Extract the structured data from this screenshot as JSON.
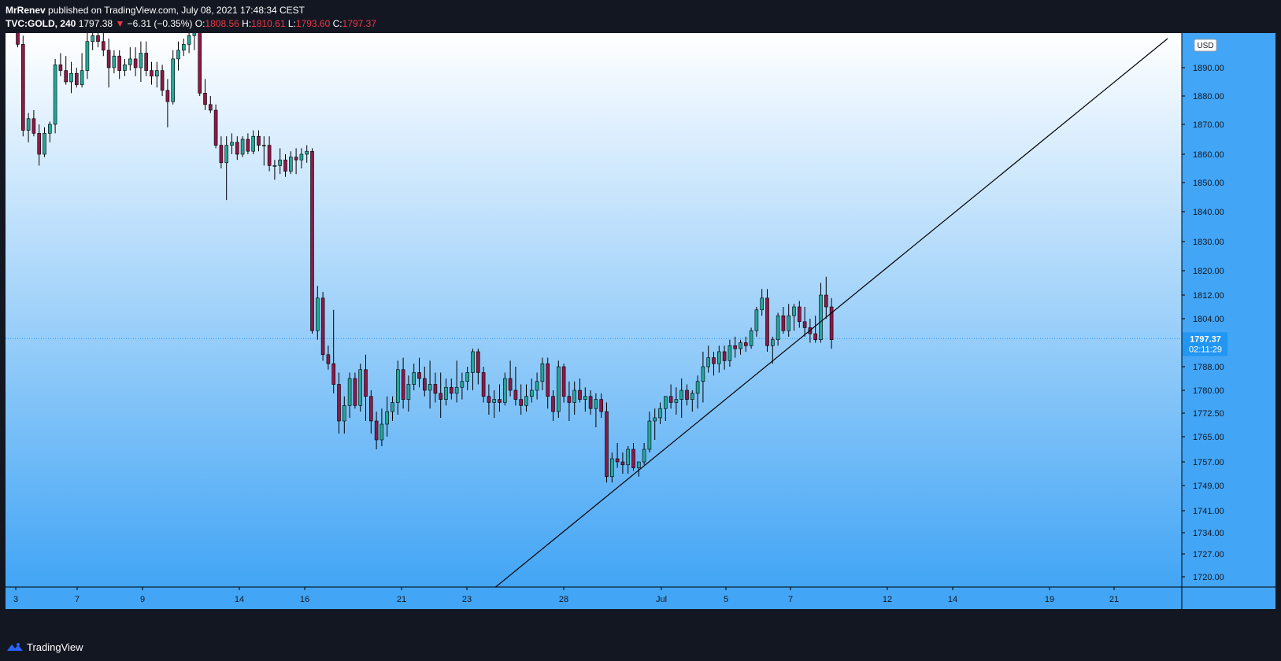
{
  "header": {
    "author": "MrRenev",
    "published": " published on TradingView.com, July 08, 2021 17:48:34 CEST",
    "symbol": "TVC:GOLD, 240",
    "last": "1797.38",
    "change_arrow": "▼",
    "change": "−6.31 (−0.35%)",
    "o_label": "O:",
    "o_value": "1808.56",
    "h_label": "H:",
    "h_value": "1810.61",
    "l_label": "L:",
    "l_value": "1793.60",
    "c_label": "C:",
    "c_value": "1797.37"
  },
  "footer": {
    "brand": "TradingView",
    "logo_icon": "tradingview-logo-icon"
  },
  "colors": {
    "up": "#26a69a",
    "down": "#8b1a47",
    "bg_top": "#ffffff",
    "bg_bottom": "#42a5f5",
    "axis_bg": "#42a5f5",
    "price_tag": "#2196f3",
    "trendline": "#000000"
  },
  "chart_data": {
    "type": "candlestick",
    "currency": "USD",
    "last_price_label": "1797.37",
    "countdown_label": "02:11:29",
    "last_price": 1797.37,
    "y_ticks": [
      "1890.00",
      "1880.00",
      "1870.00",
      "1860.00",
      "1850.00",
      "1840.00",
      "1830.00",
      "1820.00",
      "1812.00",
      "1804.00",
      "1788.00",
      "1780.00",
      "1772.50",
      "1765.00",
      "1757.00",
      "1749.00",
      "1741.00",
      "1734.00",
      "1727.00",
      "1720.00"
    ],
    "x_ticks": [
      "3",
      "7",
      "9",
      "14",
      "16",
      "21",
      "23",
      "28",
      "Jul",
      "5",
      "7",
      "12",
      "14",
      "19",
      "21"
    ],
    "trendline": {
      "from": [
        "Jun 24",
        1715
      ],
      "to": [
        "Jul 22",
        1900
      ]
    },
    "candles": [
      [
        1903,
        1904,
        1897,
        1898
      ],
      [
        1898,
        1901,
        1866,
        1868
      ],
      [
        1868,
        1874,
        1864,
        1872
      ],
      [
        1872,
        1875,
        1866,
        1867
      ],
      [
        1867,
        1870,
        1856,
        1860
      ],
      [
        1860,
        1869,
        1859,
        1867
      ],
      [
        1867,
        1871,
        1864,
        1870
      ],
      [
        1870,
        1893,
        1867,
        1891
      ],
      [
        1891,
        1895,
        1887,
        1889
      ],
      [
        1889,
        1894,
        1884,
        1885
      ],
      [
        1885,
        1892,
        1881,
        1888
      ],
      [
        1888,
        1890,
        1883,
        1884
      ],
      [
        1884,
        1895,
        1883,
        1889
      ],
      [
        1889,
        1902,
        1886,
        1899
      ],
      [
        1899,
        1903,
        1896,
        1901
      ],
      [
        1901,
        1905,
        1897,
        1899
      ],
      [
        1899,
        1902,
        1894,
        1896
      ],
      [
        1896,
        1900,
        1883,
        1890
      ],
      [
        1890,
        1896,
        1888,
        1894
      ],
      [
        1894,
        1896,
        1886,
        1889
      ],
      [
        1889,
        1893,
        1887,
        1891
      ],
      [
        1891,
        1897,
        1889,
        1893
      ],
      [
        1893,
        1897,
        1887,
        1890
      ],
      [
        1890,
        1899,
        1885,
        1895
      ],
      [
        1895,
        1899,
        1887,
        1889
      ],
      [
        1889,
        1892,
        1884,
        1887
      ],
      [
        1887,
        1892,
        1883,
        1889
      ],
      [
        1889,
        1891,
        1880,
        1882
      ],
      [
        1882,
        1886,
        1869,
        1878
      ],
      [
        1878,
        1896,
        1877,
        1893
      ],
      [
        1893,
        1899,
        1889,
        1896
      ],
      [
        1896,
        1900,
        1894,
        1898
      ],
      [
        1898,
        1904,
        1895,
        1901
      ],
      [
        1901,
        1904,
        1896,
        1902
      ],
      [
        1902,
        1904,
        1880,
        1881
      ],
      [
        1881,
        1886,
        1875,
        1877
      ],
      [
        1877,
        1880,
        1874,
        1875
      ],
      [
        1875,
        1877,
        1862,
        1863
      ],
      [
        1863,
        1866,
        1855,
        1857
      ],
      [
        1857,
        1866,
        1844,
        1863
      ],
      [
        1863,
        1867,
        1860,
        1864
      ],
      [
        1864,
        1866,
        1858,
        1860
      ],
      [
        1860,
        1866,
        1859,
        1865
      ],
      [
        1865,
        1867,
        1860,
        1861
      ],
      [
        1861,
        1868,
        1860,
        1866
      ],
      [
        1866,
        1868,
        1861,
        1863
      ],
      [
        1863,
        1866,
        1856,
        1863
      ],
      [
        1863,
        1866,
        1854,
        1856
      ],
      [
        1856,
        1858,
        1851,
        1856
      ],
      [
        1856,
        1862,
        1853,
        1858
      ],
      [
        1858,
        1860,
        1852,
        1854
      ],
      [
        1854,
        1861,
        1853,
        1859
      ],
      [
        1859,
        1862,
        1853,
        1858
      ],
      [
        1858,
        1862,
        1855,
        1860
      ],
      [
        1860,
        1863,
        1857,
        1861
      ],
      [
        1861,
        1862,
        1799,
        1800
      ],
      [
        1800,
        1815,
        1797,
        1811
      ],
      [
        1811,
        1813,
        1790,
        1792
      ],
      [
        1792,
        1795,
        1787,
        1789
      ],
      [
        1789,
        1807,
        1779,
        1782
      ],
      [
        1782,
        1786,
        1766,
        1770
      ],
      [
        1770,
        1778,
        1766,
        1775
      ],
      [
        1775,
        1786,
        1771,
        1784
      ],
      [
        1784,
        1786,
        1774,
        1775
      ],
      [
        1775,
        1789,
        1773,
        1787
      ],
      [
        1787,
        1792,
        1770,
        1778
      ],
      [
        1778,
        1780,
        1766,
        1770
      ],
      [
        1770,
        1773,
        1761,
        1764
      ],
      [
        1764,
        1774,
        1762,
        1769
      ],
      [
        1769,
        1778,
        1765,
        1773
      ],
      [
        1773,
        1778,
        1770,
        1776
      ],
      [
        1776,
        1790,
        1772,
        1787
      ],
      [
        1787,
        1791,
        1774,
        1777
      ],
      [
        1777,
        1785,
        1773,
        1782
      ],
      [
        1782,
        1789,
        1780,
        1786
      ],
      [
        1786,
        1791,
        1781,
        1784
      ],
      [
        1784,
        1788,
        1778,
        1780
      ],
      [
        1780,
        1790,
        1774,
        1782
      ],
      [
        1782,
        1786,
        1776,
        1779
      ],
      [
        1779,
        1786,
        1771,
        1777
      ],
      [
        1777,
        1784,
        1775,
        1781
      ],
      [
        1781,
        1784,
        1777,
        1779
      ],
      [
        1779,
        1790,
        1776,
        1781
      ],
      [
        1781,
        1786,
        1777,
        1783
      ],
      [
        1783,
        1788,
        1780,
        1786
      ],
      [
        1786,
        1794,
        1780,
        1793
      ],
      [
        1793,
        1794,
        1782,
        1786
      ],
      [
        1786,
        1788,
        1776,
        1778
      ],
      [
        1778,
        1782,
        1772,
        1776
      ],
      [
        1776,
        1780,
        1771,
        1777
      ],
      [
        1777,
        1782,
        1773,
        1776
      ],
      [
        1776,
        1786,
        1775,
        1784
      ],
      [
        1784,
        1790,
        1778,
        1780
      ],
      [
        1780,
        1788,
        1775,
        1777
      ],
      [
        1777,
        1782,
        1772,
        1775
      ],
      [
        1775,
        1782,
        1773,
        1778
      ],
      [
        1778,
        1784,
        1776,
        1780
      ],
      [
        1780,
        1786,
        1777,
        1783
      ],
      [
        1783,
        1791,
        1780,
        1789
      ],
      [
        1789,
        1791,
        1774,
        1778
      ],
      [
        1778,
        1780,
        1770,
        1773
      ],
      [
        1773,
        1790,
        1771,
        1788
      ],
      [
        1788,
        1789,
        1776,
        1778
      ],
      [
        1778,
        1783,
        1770,
        1776
      ],
      [
        1776,
        1783,
        1772,
        1780
      ],
      [
        1780,
        1784,
        1776,
        1777
      ],
      [
        1777,
        1781,
        1773,
        1778
      ],
      [
        1778,
        1780,
        1772,
        1774
      ],
      [
        1774,
        1779,
        1768,
        1777
      ],
      [
        1777,
        1779,
        1771,
        1773
      ],
      [
        1773,
        1776,
        1750,
        1752
      ],
      [
        1752,
        1760,
        1750,
        1758
      ],
      [
        1758,
        1763,
        1755,
        1757
      ],
      [
        1757,
        1760,
        1753,
        1756
      ],
      [
        1756,
        1762,
        1753,
        1761
      ],
      [
        1761,
        1763,
        1754,
        1755
      ],
      [
        1755,
        1757,
        1752,
        1757
      ],
      [
        1757,
        1763,
        1756,
        1761
      ],
      [
        1761,
        1773,
        1760,
        1770
      ],
      [
        1770,
        1774,
        1764,
        1771
      ],
      [
        1771,
        1776,
        1769,
        1774
      ],
      [
        1774,
        1778,
        1770,
        1778
      ],
      [
        1778,
        1782,
        1774,
        1776
      ],
      [
        1776,
        1781,
        1772,
        1777
      ],
      [
        1777,
        1784,
        1771,
        1780
      ],
      [
        1780,
        1782,
        1775,
        1777
      ],
      [
        1777,
        1780,
        1773,
        1779
      ],
      [
        1779,
        1785,
        1774,
        1783
      ],
      [
        1783,
        1793,
        1776,
        1788
      ],
      [
        1788,
        1795,
        1786,
        1791
      ],
      [
        1791,
        1793,
        1785,
        1789
      ],
      [
        1789,
        1795,
        1786,
        1793
      ],
      [
        1793,
        1795,
        1787,
        1790
      ],
      [
        1790,
        1797,
        1788,
        1795
      ],
      [
        1795,
        1798,
        1791,
        1794
      ],
      [
        1794,
        1797,
        1792,
        1796
      ],
      [
        1796,
        1798,
        1793,
        1795
      ],
      [
        1795,
        1801,
        1794,
        1800
      ],
      [
        1800,
        1808,
        1798,
        1807
      ],
      [
        1807,
        1814,
        1805,
        1811
      ],
      [
        1811,
        1814,
        1793,
        1795
      ],
      [
        1795,
        1798,
        1789,
        1797
      ],
      [
        1797,
        1806,
        1795,
        1805
      ],
      [
        1805,
        1808,
        1799,
        1800
      ],
      [
        1800,
        1809,
        1798,
        1805
      ],
      [
        1805,
        1809,
        1800,
        1808
      ],
      [
        1808,
        1810,
        1801,
        1803
      ],
      [
        1803,
        1808,
        1798,
        1801
      ],
      [
        1801,
        1804,
        1796,
        1799
      ],
      [
        1799,
        1805,
        1796,
        1797
      ],
      [
        1797,
        1816,
        1796,
        1812
      ],
      [
        1812,
        1818,
        1804,
        1808
      ],
      [
        1808,
        1811,
        1794,
        1797
      ]
    ]
  }
}
